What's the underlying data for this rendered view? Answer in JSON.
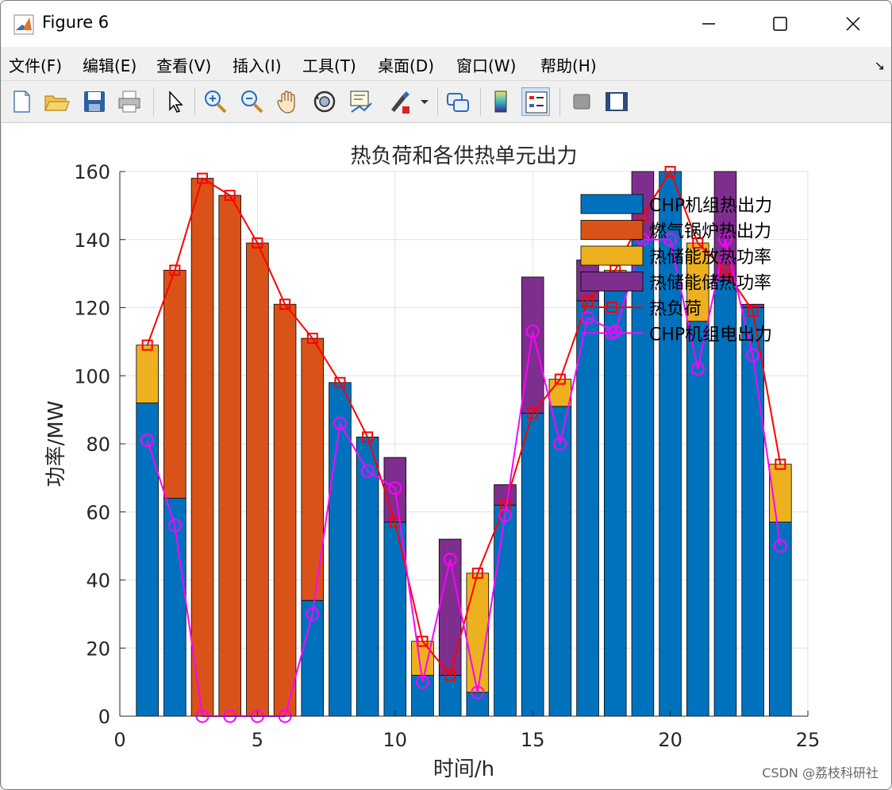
{
  "window": {
    "title": "Figure 6"
  },
  "menu": [
    "文件(F)",
    "编辑(E)",
    "查看(V)",
    "插入(I)",
    "工具(T)",
    "桌面(D)",
    "窗口(W)",
    "帮助(H)"
  ],
  "toolbar": [
    {
      "name": "new-figure-icon"
    },
    {
      "name": "open-file-icon"
    },
    {
      "name": "save-icon"
    },
    {
      "name": "print-icon"
    },
    {
      "name": "select-arrow-icon"
    },
    {
      "name": "zoom-in-icon"
    },
    {
      "name": "zoom-out-icon"
    },
    {
      "name": "pan-hand-icon"
    },
    {
      "name": "rotate-3d-icon"
    },
    {
      "name": "data-cursor-icon"
    },
    {
      "name": "brush-icon"
    },
    {
      "name": "link-plot-icon"
    },
    {
      "name": "colorbar-icon"
    },
    {
      "name": "legend-icon"
    },
    {
      "name": "hide-plot-tools-icon"
    },
    {
      "name": "show-plot-tools-icon"
    }
  ],
  "watermark": "CSDN @荔枝科研社",
  "chart_data": {
    "type": "bar",
    "title": "热负荷和各供热单元出力",
    "xlabel": "时间/h",
    "ylabel": "功率/MW",
    "xlim": [
      0,
      25
    ],
    "ylim": [
      0,
      160
    ],
    "xticks": [
      0,
      5,
      10,
      15,
      20,
      25
    ],
    "yticks": [
      0,
      20,
      40,
      60,
      80,
      100,
      120,
      140,
      160
    ],
    "grid": true,
    "legend_position": "top-right",
    "x": [
      1,
      2,
      3,
      4,
      5,
      6,
      7,
      8,
      9,
      10,
      11,
      12,
      13,
      14,
      15,
      16,
      17,
      18,
      19,
      20,
      21,
      22,
      23,
      24
    ],
    "bar_series": [
      {
        "name": "CHP机组热出力",
        "color": "#0072BD",
        "values": [
          92,
          64,
          0,
          0,
          0,
          0,
          34,
          98,
          82,
          57,
          12,
          12,
          7,
          62,
          89,
          91,
          122,
          125,
          140,
          160,
          116,
          128,
          120,
          57
        ]
      },
      {
        "name": "燃气锅炉热出力",
        "color": "#D95319",
        "values": [
          0,
          67,
          158,
          153,
          139,
          121,
          77,
          0,
          0,
          0,
          0,
          0,
          0,
          0,
          0,
          0,
          0,
          0,
          0,
          0,
          0,
          0,
          0,
          0
        ]
      },
      {
        "name": "热储能放热功率",
        "color": "#EDB120",
        "values": [
          17,
          0,
          0,
          0,
          0,
          0,
          0,
          0,
          0,
          0,
          10,
          0,
          35,
          0,
          0,
          8,
          0,
          6,
          0,
          0,
          23,
          0,
          0,
          17
        ]
      },
      {
        "name": "热储能储热功率",
        "color": "#7E2F8E",
        "values": [
          0,
          0,
          0,
          0,
          0,
          0,
          0,
          0,
          0,
          19,
          0,
          40,
          0,
          6,
          40,
          0,
          12,
          0,
          20,
          0,
          0,
          32,
          1,
          0
        ]
      }
    ],
    "line_series": [
      {
        "name": "热负荷",
        "color": "#FF0000",
        "marker": "square",
        "values": [
          109,
          131,
          158,
          153,
          139,
          121,
          111,
          98,
          82,
          57,
          22,
          12,
          42,
          62,
          89,
          99,
          122,
          131,
          147,
          160,
          139,
          131,
          119,
          74
        ]
      },
      {
        "name": "CHP机组电出力",
        "color": "#FF00FF",
        "marker": "circle",
        "values": [
          81,
          56,
          0,
          0,
          0,
          0,
          30,
          86,
          72,
          67,
          10,
          46,
          7,
          59,
          113,
          80,
          117,
          113,
          140,
          140,
          102,
          140,
          106,
          50
        ]
      }
    ]
  }
}
